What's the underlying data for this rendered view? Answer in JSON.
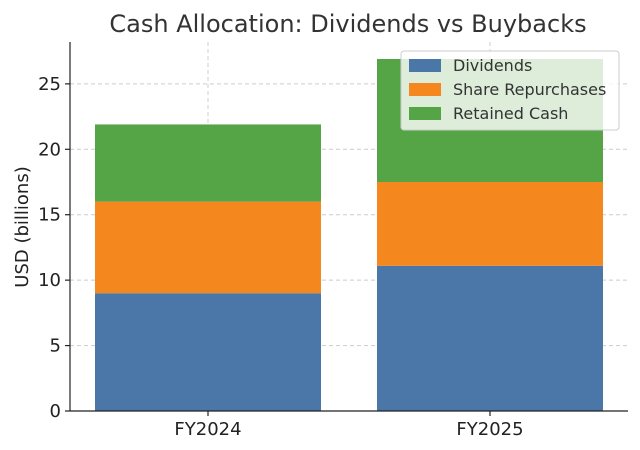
{
  "chart_data": {
    "type": "bar",
    "stacked": true,
    "title": "Cash Allocation: Dividends vs Buybacks",
    "xlabel": "",
    "ylabel": "USD (billions)",
    "categories": [
      "FY2024",
      "FY2025"
    ],
    "series": [
      {
        "name": "Dividends",
        "values": [
          9.0,
          11.1
        ],
        "color": "#4a76a8"
      },
      {
        "name": "Share Repurchases",
        "values": [
          7.0,
          6.4
        ],
        "color": "#f5871f"
      },
      {
        "name": "Retained Cash",
        "values": [
          5.9,
          9.4
        ],
        "color": "#55a446"
      }
    ],
    "ylim": [
      0,
      28.2
    ],
    "yticks": [
      0,
      5,
      10,
      15,
      20,
      25
    ],
    "grid": true,
    "legend_position": "top-right"
  }
}
